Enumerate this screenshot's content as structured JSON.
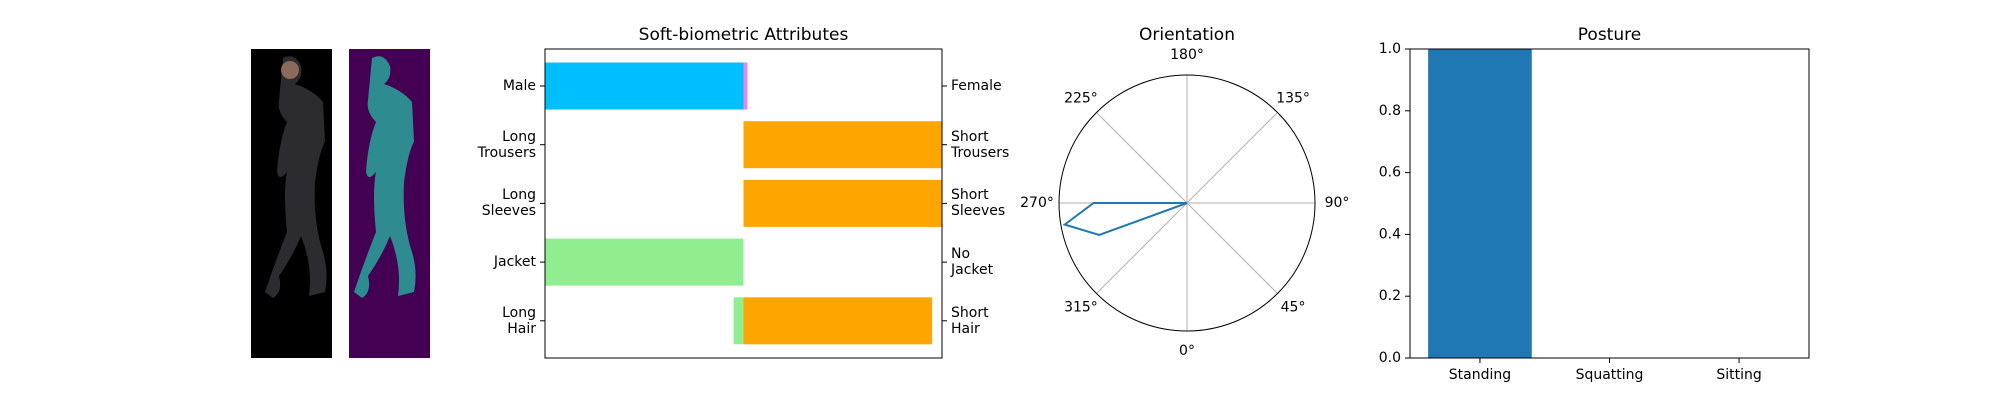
{
  "chart_data": [
    {
      "type": "diverging-bar",
      "title": "Soft-biometric Attributes",
      "categories": [
        "Male",
        "Long\nTrousers",
        "Long\nSleeves",
        "Jacket",
        "Long\nHair"
      ],
      "right_categories": [
        "Female",
        "Short\nTrousers",
        "Short\nSleeves",
        "No\nJacket",
        "Short\nHair"
      ],
      "series": [
        {
          "values": [
            -1,
            0,
            0,
            -1,
            -0.05
          ],
          "colors": [
            "#00bfff",
            "#ffa500",
            "#ffa500",
            "#90ee90",
            "#90ee90"
          ]
        },
        {
          "values": [
            0.02,
            1,
            1,
            0,
            0.95
          ],
          "colors": [
            "#ee82ee",
            "#ffa500",
            "#ffa500",
            "#90ee90",
            "#ffa500"
          ]
        }
      ],
      "xlim": [
        -1,
        1
      ]
    },
    {
      "type": "polar",
      "title": "Orientation",
      "x": [
        0,
        10,
        20,
        30,
        40,
        50,
        60,
        70,
        80,
        90,
        100,
        110,
        120,
        130,
        140,
        150,
        160,
        170,
        180,
        190,
        200,
        210,
        220,
        230,
        240,
        250,
        260,
        270,
        280,
        290,
        300,
        310,
        320,
        330,
        340,
        350
      ],
      "values": [
        0,
        0,
        0,
        0,
        0,
        0,
        0,
        0,
        0,
        0,
        0,
        0,
        0,
        0,
        0,
        0,
        0,
        0,
        0,
        0,
        0,
        0,
        0,
        0,
        0,
        0,
        0,
        0.73,
        0.97,
        0.73,
        0,
        0,
        0,
        0,
        0,
        0
      ],
      "color": "#1f77b4",
      "ylim": [
        0,
        1
      ],
      "xticks": [
        {
          "value": 0,
          "label": "0°"
        },
        {
          "value": 45,
          "label": "45°"
        },
        {
          "value": 90,
          "label": "90°"
        },
        {
          "value": 135,
          "label": "135°"
        },
        {
          "value": 180,
          "label": "180°"
        },
        {
          "value": 225,
          "label": "225°"
        },
        {
          "value": 270,
          "label": "270°"
        },
        {
          "value": 315,
          "label": "315°"
        }
      ]
    },
    {
      "type": "bar",
      "title": "Posture",
      "categories": [
        "Standing",
        "Squatting",
        "Sitting"
      ],
      "values": [
        1,
        0,
        0
      ],
      "color": "#1f77b4",
      "ylim": [
        0,
        1
      ],
      "yticks": [
        {
          "value": 0,
          "label": "0.0"
        },
        {
          "value": 0.2,
          "label": "0.2"
        },
        {
          "value": 0.4,
          "label": "0.4"
        },
        {
          "value": 0.6,
          "label": "0.6"
        },
        {
          "value": 0.8,
          "label": "0.8"
        },
        {
          "value": 1,
          "label": "1.0"
        }
      ]
    }
  ]
}
